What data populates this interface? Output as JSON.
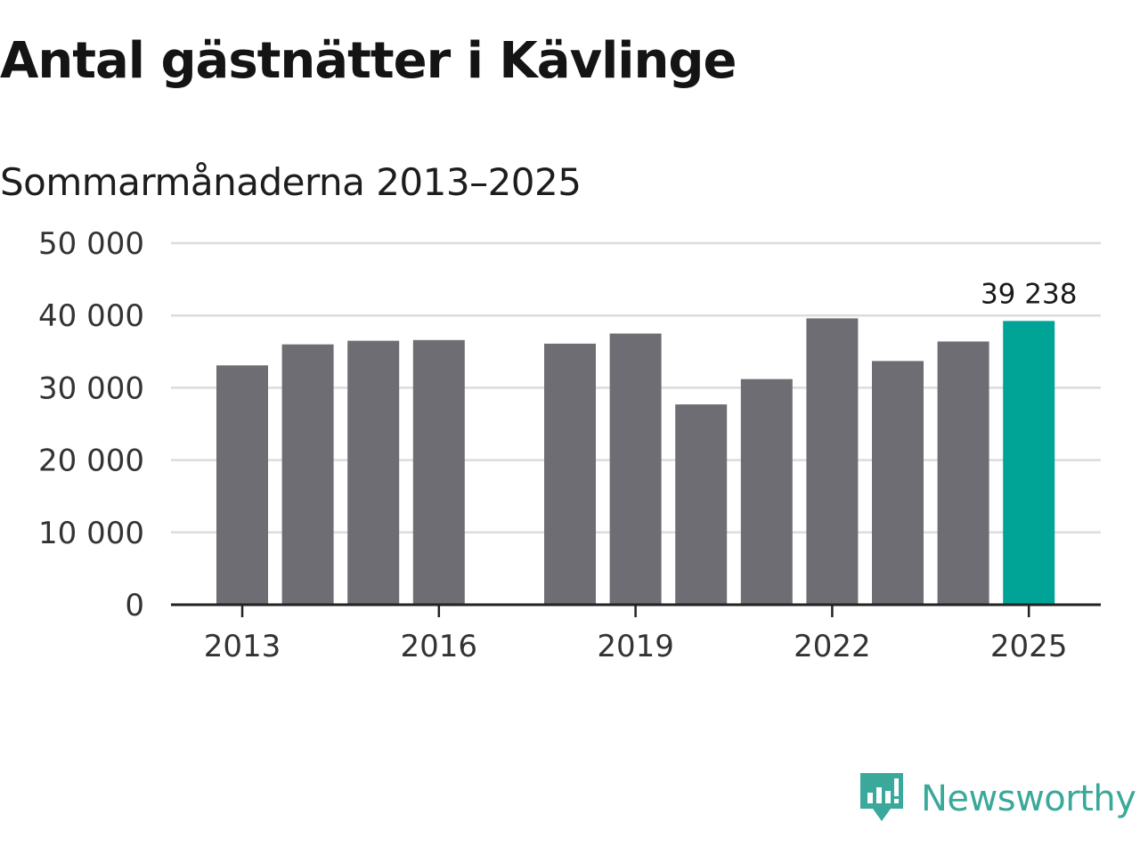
{
  "header": {
    "title": "Antal gästnätter i Kävlinge",
    "subtitle": "Sommarmånaderna 2013–2025"
  },
  "brand": {
    "name": "Newsworthy",
    "icon": "newsworthy-logo-icon",
    "color": "#3aa89a"
  },
  "colors": {
    "bar": "#6e6d73",
    "highlight": "#00a497",
    "grid": "#dcdcdc",
    "axis": "#222222"
  },
  "chart_data": {
    "type": "bar",
    "title": "Antal gästnätter i Kävlinge",
    "subtitle": "Sommarmånaderna 2013–2025",
    "categories": [
      "2013",
      "2014",
      "2015",
      "2016",
      "2017",
      "2018",
      "2019",
      "2020",
      "2021",
      "2022",
      "2023",
      "2024",
      "2025"
    ],
    "values": [
      33100,
      36000,
      36500,
      36600,
      null,
      36100,
      37500,
      27700,
      31200,
      39600,
      33700,
      36400,
      39238
    ],
    "highlight_index": 12,
    "data_labels": [
      {
        "index": 12,
        "text": "39 238"
      }
    ],
    "x_tick_labels": [
      "2013",
      "2016",
      "2019",
      "2022",
      "2025"
    ],
    "y_tick_labels": [
      "0",
      "10 000",
      "20 000",
      "30 000",
      "40 000",
      "50 000"
    ],
    "y_ticks": [
      0,
      10000,
      20000,
      30000,
      40000,
      50000
    ],
    "ylim": [
      0,
      50000
    ],
    "xlabel": "",
    "ylabel": "",
    "grid": true,
    "legend": "none"
  }
}
